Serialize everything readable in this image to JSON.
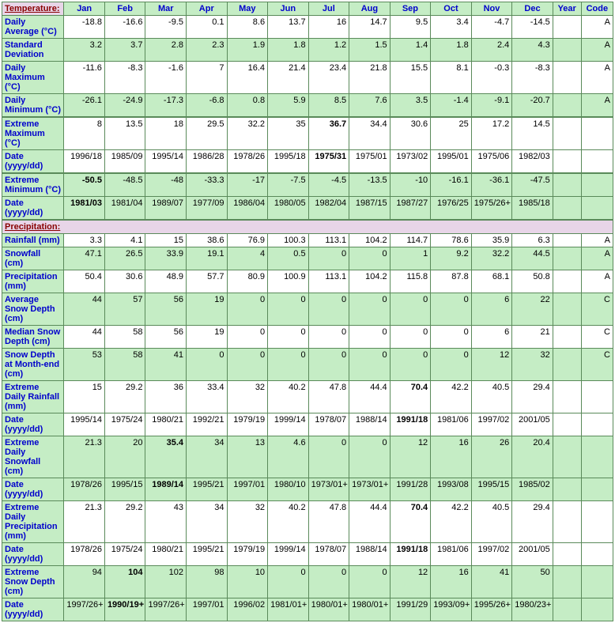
{
  "header": {
    "section_temp": "Temperature:",
    "section_precip": "Precipitation:",
    "months": [
      "Jan",
      "Feb",
      "Mar",
      "Apr",
      "May",
      "Jun",
      "Jul",
      "Aug",
      "Sep",
      "Oct",
      "Nov",
      "Dec"
    ],
    "year": "Year",
    "code": "Code"
  },
  "rows": [
    {
      "label": "Daily Average (°C)",
      "cls": "white",
      "vals": [
        "-18.8",
        "-16.6",
        "-9.5",
        "0.1",
        "8.6",
        "13.7",
        "16",
        "14.7",
        "9.5",
        "3.4",
        "-4.7",
        "-14.5",
        "",
        "A"
      ]
    },
    {
      "label": "Standard Deviation",
      "cls": "green",
      "vals": [
        "3.2",
        "3.7",
        "2.8",
        "2.3",
        "1.9",
        "1.8",
        "1.2",
        "1.5",
        "1.4",
        "1.8",
        "2.4",
        "4.3",
        "",
        "A"
      ]
    },
    {
      "label": "Daily Maximum (°C)",
      "cls": "white",
      "vals": [
        "-11.6",
        "-8.3",
        "-1.6",
        "7",
        "16.4",
        "21.4",
        "23.4",
        "21.8",
        "15.5",
        "8.1",
        "-0.3",
        "-8.3",
        "",
        "A"
      ]
    },
    {
      "label": "Daily Minimum (°C)",
      "cls": "green",
      "thick": true,
      "vals": [
        "-26.1",
        "-24.9",
        "-17.3",
        "-6.8",
        "0.8",
        "5.9",
        "8.5",
        "7.6",
        "3.5",
        "-1.4",
        "-9.1",
        "-20.7",
        "",
        "A"
      ]
    },
    {
      "label": "Extreme Maximum (°C)",
      "cls": "white",
      "vals": [
        "8",
        "13.5",
        "18",
        "29.5",
        "32.2",
        "35",
        "36.7",
        "34.4",
        "30.6",
        "25",
        "17.2",
        "14.5",
        "",
        ""
      ],
      "bold": [
        6
      ]
    },
    {
      "label": "Date (yyyy/dd)",
      "cls": "white",
      "thick": true,
      "vals": [
        "1996/18",
        "1985/09",
        "1995/14",
        "1986/28",
        "1978/26",
        "1995/18",
        "1975/31",
        "1975/01",
        "1973/02",
        "1995/01",
        "1975/06",
        "1982/03",
        "",
        ""
      ],
      "bold": [
        6
      ]
    },
    {
      "label": "Extreme Minimum (°C)",
      "cls": "green",
      "vals": [
        "-50.5",
        "-48.5",
        "-48",
        "-33.3",
        "-17",
        "-7.5",
        "-4.5",
        "-13.5",
        "-10",
        "-16.1",
        "-36.1",
        "-47.5",
        "",
        ""
      ],
      "bold": [
        0
      ]
    },
    {
      "label": "Date (yyyy/dd)",
      "cls": "green",
      "thick": true,
      "vals": [
        "1981/03",
        "1981/04",
        "1989/07",
        "1977/09",
        "1986/04",
        "1980/05",
        "1982/04",
        "1987/15",
        "1987/27",
        "1976/25",
        "1975/26+",
        "1985/18",
        "",
        ""
      ],
      "bold": [
        0
      ]
    }
  ],
  "precip_rows": [
    {
      "label": "Rainfall (mm)",
      "cls": "white",
      "vals": [
        "3.3",
        "4.1",
        "15",
        "38.6",
        "76.9",
        "100.3",
        "113.1",
        "104.2",
        "114.7",
        "78.6",
        "35.9",
        "6.3",
        "",
        "A"
      ]
    },
    {
      "label": "Snowfall (cm)",
      "cls": "green",
      "vals": [
        "47.1",
        "26.5",
        "33.9",
        "19.1",
        "4",
        "0.5",
        "0",
        "0",
        "1",
        "9.2",
        "32.2",
        "44.5",
        "",
        "A"
      ]
    },
    {
      "label": "Precipitation (mm)",
      "cls": "white",
      "vals": [
        "50.4",
        "30.6",
        "48.9",
        "57.7",
        "80.9",
        "100.9",
        "113.1",
        "104.2",
        "115.8",
        "87.8",
        "68.1",
        "50.8",
        "",
        "A"
      ]
    },
    {
      "label": "Average Snow Depth (cm)",
      "cls": "green",
      "vals": [
        "44",
        "57",
        "56",
        "19",
        "0",
        "0",
        "0",
        "0",
        "0",
        "0",
        "6",
        "22",
        "",
        "C"
      ]
    },
    {
      "label": "Median Snow Depth (cm)",
      "cls": "white",
      "vals": [
        "44",
        "58",
        "56",
        "19",
        "0",
        "0",
        "0",
        "0",
        "0",
        "0",
        "6",
        "21",
        "",
        "C"
      ]
    },
    {
      "label": "Snow Depth at Month-end (cm)",
      "cls": "green",
      "vals": [
        "53",
        "58",
        "41",
        "0",
        "0",
        "0",
        "0",
        "0",
        "0",
        "0",
        "12",
        "32",
        "",
        "C"
      ]
    },
    {
      "label": "Extreme Daily Rainfall (mm)",
      "cls": "white",
      "vals": [
        "15",
        "29.2",
        "36",
        "33.4",
        "32",
        "40.2",
        "47.8",
        "44.4",
        "70.4",
        "42.2",
        "40.5",
        "29.4",
        "",
        ""
      ],
      "bold": [
        8
      ]
    },
    {
      "label": "Date (yyyy/dd)",
      "cls": "white",
      "vals": [
        "1995/14",
        "1975/24",
        "1980/21",
        "1992/21",
        "1979/19",
        "1999/14",
        "1978/07",
        "1988/14",
        "1991/18",
        "1981/06",
        "1997/02",
        "2001/05",
        "",
        ""
      ],
      "bold": [
        8
      ]
    },
    {
      "label": "Extreme Daily Snowfall (cm)",
      "cls": "green",
      "vals": [
        "21.3",
        "20",
        "35.4",
        "34",
        "13",
        "4.6",
        "0",
        "0",
        "12",
        "16",
        "26",
        "20.4",
        "",
        ""
      ],
      "bold": [
        2
      ]
    },
    {
      "label": "Date (yyyy/dd)",
      "cls": "green",
      "vals": [
        "1978/26",
        "1995/15",
        "1989/14",
        "1995/21",
        "1997/01",
        "1980/10",
        "1973/01+",
        "1973/01+",
        "1991/28",
        "1993/08",
        "1995/15",
        "1985/02",
        "",
        ""
      ],
      "bold": [
        2
      ]
    },
    {
      "label": "Extreme Daily Precipitation (mm)",
      "cls": "white",
      "vals": [
        "21.3",
        "29.2",
        "43",
        "34",
        "32",
        "40.2",
        "47.8",
        "44.4",
        "70.4",
        "42.2",
        "40.5",
        "29.4",
        "",
        ""
      ],
      "bold": [
        8
      ]
    },
    {
      "label": "Date (yyyy/dd)",
      "cls": "white",
      "vals": [
        "1978/26",
        "1975/24",
        "1980/21",
        "1995/21",
        "1979/19",
        "1999/14",
        "1978/07",
        "1988/14",
        "1991/18",
        "1981/06",
        "1997/02",
        "2001/05",
        "",
        ""
      ],
      "bold": [
        8
      ]
    },
    {
      "label": "Extreme Snow Depth (cm)",
      "cls": "green",
      "vals": [
        "94",
        "104",
        "102",
        "98",
        "10",
        "0",
        "0",
        "0",
        "12",
        "16",
        "41",
        "50",
        "",
        ""
      ],
      "bold": [
        1
      ]
    },
    {
      "label": "Date (yyyy/dd)",
      "cls": "green",
      "vals": [
        "1997/26+",
        "1990/19+",
        "1997/26+",
        "1997/01",
        "1996/02",
        "1981/01+",
        "1980/01+",
        "1980/01+",
        "1991/29",
        "1993/09+",
        "1995/26+",
        "1980/23+",
        "",
        ""
      ],
      "bold": [
        1
      ]
    }
  ]
}
